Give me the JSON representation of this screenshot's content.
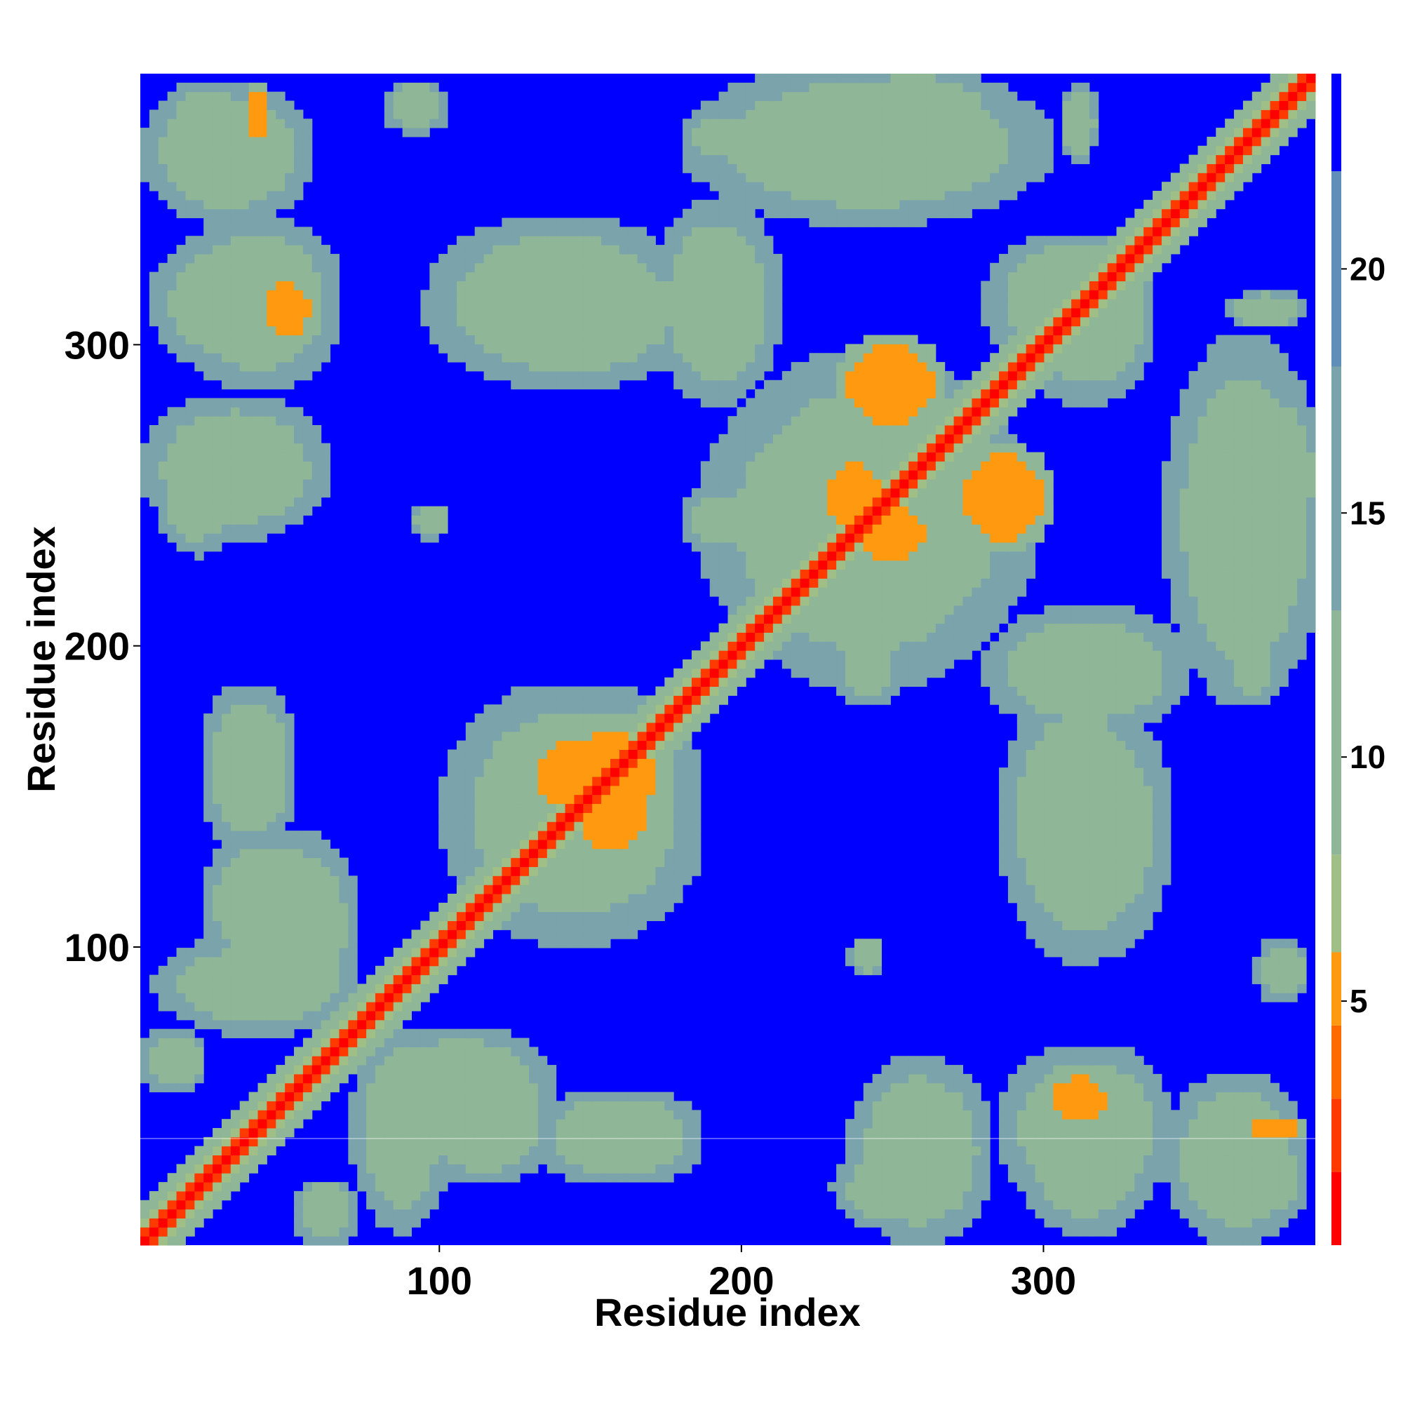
{
  "chart_data": {
    "type": "heatmap",
    "title": "",
    "xlabel": "Residue index",
    "ylabel": "Residue index",
    "n_residues": 390,
    "xlim": [
      1,
      390
    ],
    "ylim": [
      1,
      390
    ],
    "xticks": [
      100,
      200,
      300
    ],
    "yticks": [
      100,
      200,
      300
    ],
    "colorbar": {
      "ticks": [
        5,
        10,
        15,
        20
      ],
      "range": [
        0,
        24
      ],
      "colors": [
        "#ff0000",
        "#ff3a00",
        "#ff6a00",
        "#ff9a10",
        "#9fbf86",
        "#8fb696",
        "#7aa3ac",
        "#5f8eb8",
        "#0000ff"
      ],
      "thresholds": [
        1.5,
        3,
        4.5,
        6,
        8,
        13,
        18,
        22,
        24
      ]
    },
    "background_value": 24,
    "diagonal_band": {
      "half_width": 4,
      "min_value": 1,
      "edge_value": 12
    },
    "secondary_band_value": 13,
    "contact_regions": [
      {
        "x": [
          8,
          30
        ],
        "y": [
          360,
          385
        ],
        "value": 12
      },
      {
        "x": [
          35,
          40
        ],
        "y": [
          365,
          385
        ],
        "value": 5
      },
      {
        "x": [
          80,
          100
        ],
        "y": [
          370,
          385
        ],
        "value": 13
      },
      {
        "x": [
          180,
          200
        ],
        "y": [
          360,
          375
        ],
        "value": 12
      },
      {
        "x": [
          225,
          285
        ],
        "y": [
          360,
          390
        ],
        "value": 12
      },
      {
        "x": [
          305,
          315
        ],
        "y": [
          360,
          385
        ],
        "value": 13
      },
      {
        "x": [
          3,
          60
        ],
        "y": [
          290,
          335
        ],
        "value": 12
      },
      {
        "x": [
          40,
          55
        ],
        "y": [
          300,
          320
        ],
        "value": 6
      },
      {
        "x": [
          95,
          185
        ],
        "y": [
          285,
          335
        ],
        "value": 12
      },
      {
        "x": [
          230,
          265
        ],
        "y": [
          270,
          300
        ],
        "value": 6
      },
      {
        "x": [
          290,
          335
        ],
        "y": [
          280,
          335
        ],
        "value": 12
      },
      {
        "x": [
          340,
          390
        ],
        "y": [
          180,
          300
        ],
        "value": 13
      },
      {
        "x": [
          5,
          30
        ],
        "y": [
          230,
          270
        ],
        "value": 13
      },
      {
        "x": [
          185,
          295
        ],
        "y": [
          190,
          290
        ],
        "value": 12
      },
      {
        "x": [
          225,
          245
        ],
        "y": [
          235,
          260
        ],
        "value": 5
      },
      {
        "x": [
          280,
          345
        ],
        "y": [
          170,
          210
        ],
        "value": 12
      },
      {
        "x": [
          100,
          185
        ],
        "y": [
          100,
          185
        ],
        "value": 12
      },
      {
        "x": [
          140,
          170
        ],
        "y": [
          125,
          175
        ],
        "value": 6
      },
      {
        "x": [
          285,
          340
        ],
        "y": [
          95,
          180
        ],
        "value": 12
      },
      {
        "x": [
          20,
          60
        ],
        "y": [
          90,
          135
        ],
        "value": 12
      },
      {
        "x": [
          5,
          70
        ],
        "y": [
          70,
          100
        ],
        "value": 13
      },
      {
        "x": [
          75,
          135
        ],
        "y": [
          30,
          70
        ],
        "value": 12
      },
      {
        "x": [
          130,
          185
        ],
        "y": [
          20,
          50
        ],
        "value": 13
      },
      {
        "x": [
          235,
          280
        ],
        "y": [
          0,
          60
        ],
        "value": 12
      },
      {
        "x": [
          285,
          340
        ],
        "y": [
          10,
          65
        ],
        "value": 12
      },
      {
        "x": [
          340,
          385
        ],
        "y": [
          0,
          55
        ],
        "value": 12
      },
      {
        "x": [
          50,
          70
        ],
        "y": [
          0,
          20
        ],
        "value": 13
      },
      {
        "x": [
          230,
          250
        ],
        "y": [
          180,
          200
        ],
        "value": 12
      },
      {
        "x": [
          235,
          245
        ],
        "y": [
          90,
          100
        ],
        "value": 13
      }
    ]
  }
}
